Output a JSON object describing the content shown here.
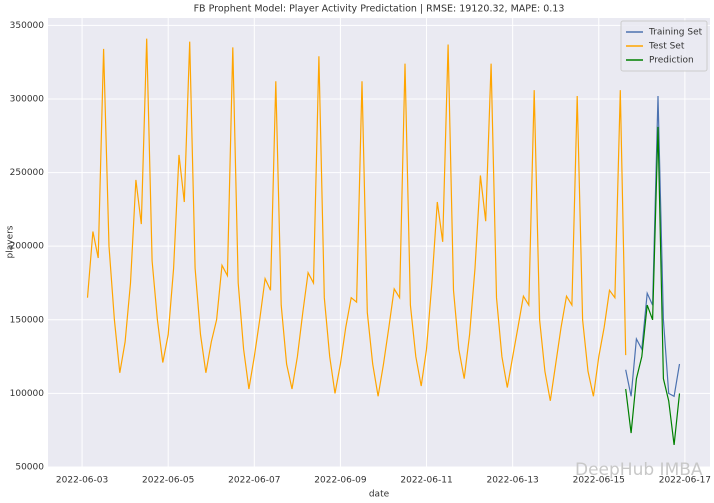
{
  "chart_data": {
    "type": "line",
    "title": "FB Prophent Model: Player Activity Predictation | RMSE: 19120.32, MAPE: 0.13",
    "xlabel": "date",
    "ylabel": "players",
    "watermark": "DeepHub IMBA",
    "xlim": [
      "2022-06-02 05:00",
      "2022-06-17 14:00"
    ],
    "xticks": [
      "2022-06-03",
      "2022-06-05",
      "2022-06-07",
      "2022-06-09",
      "2022-06-11",
      "2022-06-13",
      "2022-06-15",
      "2022-06-17"
    ],
    "ylim": [
      50000,
      355000
    ],
    "yticks": [
      50000,
      100000,
      150000,
      200000,
      250000,
      300000,
      350000
    ],
    "grid": true,
    "legend": "upper right",
    "background": "#eaeaf2",
    "series": [
      {
        "name": "Training Set",
        "color": "#4c72b0",
        "x": [
          "2022-06-15 15:00",
          "2022-06-15 18:00",
          "2022-06-15 21:00",
          "2022-06-16 00:00",
          "2022-06-16 03:00",
          "2022-06-16 06:00",
          "2022-06-16 09:00",
          "2022-06-16 12:00",
          "2022-06-16 15:00",
          "2022-06-16 18:00",
          "2022-06-16 21:00"
        ],
        "values": [
          116000,
          98000,
          137000,
          130000,
          168000,
          160000,
          302000,
          150000,
          100000,
          98000,
          120000
        ]
      },
      {
        "name": "Test Set",
        "color": "#ffa500",
        "x": [
          "2022-06-03 03:00",
          "2022-06-03 06:00",
          "2022-06-03 09:00",
          "2022-06-03 12:00",
          "2022-06-03 15:00",
          "2022-06-03 18:00",
          "2022-06-03 21:00",
          "2022-06-04 00:00",
          "2022-06-04 03:00",
          "2022-06-04 06:00",
          "2022-06-04 09:00",
          "2022-06-04 12:00",
          "2022-06-04 15:00",
          "2022-06-04 18:00",
          "2022-06-04 21:00",
          "2022-06-05 00:00",
          "2022-06-05 03:00",
          "2022-06-05 06:00",
          "2022-06-05 09:00",
          "2022-06-05 12:00",
          "2022-06-05 15:00",
          "2022-06-05 18:00",
          "2022-06-05 21:00",
          "2022-06-06 00:00",
          "2022-06-06 03:00",
          "2022-06-06 06:00",
          "2022-06-06 09:00",
          "2022-06-06 12:00",
          "2022-06-06 15:00",
          "2022-06-06 18:00",
          "2022-06-06 21:00",
          "2022-06-07 00:00",
          "2022-06-07 03:00",
          "2022-06-07 06:00",
          "2022-06-07 09:00",
          "2022-06-07 12:00",
          "2022-06-07 15:00",
          "2022-06-07 18:00",
          "2022-06-07 21:00",
          "2022-06-08 00:00",
          "2022-06-08 03:00",
          "2022-06-08 06:00",
          "2022-06-08 09:00",
          "2022-06-08 12:00",
          "2022-06-08 15:00",
          "2022-06-08 18:00",
          "2022-06-08 21:00",
          "2022-06-09 00:00",
          "2022-06-09 03:00",
          "2022-06-09 06:00",
          "2022-06-09 09:00",
          "2022-06-09 12:00",
          "2022-06-09 15:00",
          "2022-06-09 18:00",
          "2022-06-09 21:00",
          "2022-06-10 00:00",
          "2022-06-10 03:00",
          "2022-06-10 06:00",
          "2022-06-10 09:00",
          "2022-06-10 12:00",
          "2022-06-10 15:00",
          "2022-06-10 18:00",
          "2022-06-10 21:00",
          "2022-06-11 00:00",
          "2022-06-11 03:00",
          "2022-06-11 06:00",
          "2022-06-11 09:00",
          "2022-06-11 12:00",
          "2022-06-11 15:00",
          "2022-06-11 18:00",
          "2022-06-11 21:00",
          "2022-06-12 00:00",
          "2022-06-12 03:00",
          "2022-06-12 06:00",
          "2022-06-12 09:00",
          "2022-06-12 12:00",
          "2022-06-12 15:00",
          "2022-06-12 18:00",
          "2022-06-12 21:00",
          "2022-06-13 00:00",
          "2022-06-13 03:00",
          "2022-06-13 06:00",
          "2022-06-13 09:00",
          "2022-06-13 12:00",
          "2022-06-13 15:00",
          "2022-06-13 18:00",
          "2022-06-13 21:00",
          "2022-06-14 00:00",
          "2022-06-14 03:00",
          "2022-06-14 06:00",
          "2022-06-14 09:00",
          "2022-06-14 12:00",
          "2022-06-14 15:00",
          "2022-06-14 18:00",
          "2022-06-14 21:00",
          "2022-06-15 00:00",
          "2022-06-15 03:00",
          "2022-06-15 06:00",
          "2022-06-15 09:00",
          "2022-06-15 12:00",
          "2022-06-15 15:00"
        ],
        "values": [
          165000,
          210000,
          192000,
          334000,
          200000,
          150000,
          114000,
          135000,
          175000,
          245000,
          215000,
          341000,
          190000,
          150000,
          121000,
          140000,
          185000,
          262000,
          230000,
          339000,
          185000,
          140000,
          114000,
          135000,
          150000,
          187000,
          180000,
          335000,
          175000,
          130000,
          103000,
          125000,
          150000,
          178000,
          170000,
          312000,
          160000,
          120000,
          103000,
          125000,
          155000,
          182000,
          175000,
          329000,
          165000,
          125000,
          100000,
          120000,
          145000,
          165000,
          162000,
          312000,
          155000,
          120000,
          98000,
          120000,
          145000,
          171000,
          165000,
          324000,
          160000,
          125000,
          105000,
          130000,
          175000,
          230000,
          203000,
          337000,
          170000,
          130000,
          110000,
          140000,
          185000,
          248000,
          217000,
          324000,
          165000,
          125000,
          104000,
          125000,
          145000,
          166000,
          160000,
          306000,
          150000,
          115000,
          95000,
          120000,
          145000,
          166000,
          160000,
          302000,
          150000,
          115000,
          98000,
          125000,
          145000,
          170000,
          165000,
          306000,
          126000
        ]
      },
      {
        "name": "Prediction",
        "color": "#008000",
        "x": [
          "2022-06-15 15:00",
          "2022-06-15 18:00",
          "2022-06-15 21:00",
          "2022-06-16 00:00",
          "2022-06-16 03:00",
          "2022-06-16 06:00",
          "2022-06-16 09:00",
          "2022-06-16 12:00",
          "2022-06-16 15:00",
          "2022-06-16 18:00",
          "2022-06-16 21:00"
        ],
        "values": [
          103000,
          73000,
          110000,
          125000,
          160000,
          150000,
          281000,
          110000,
          95000,
          65000,
          100000
        ]
      }
    ]
  }
}
